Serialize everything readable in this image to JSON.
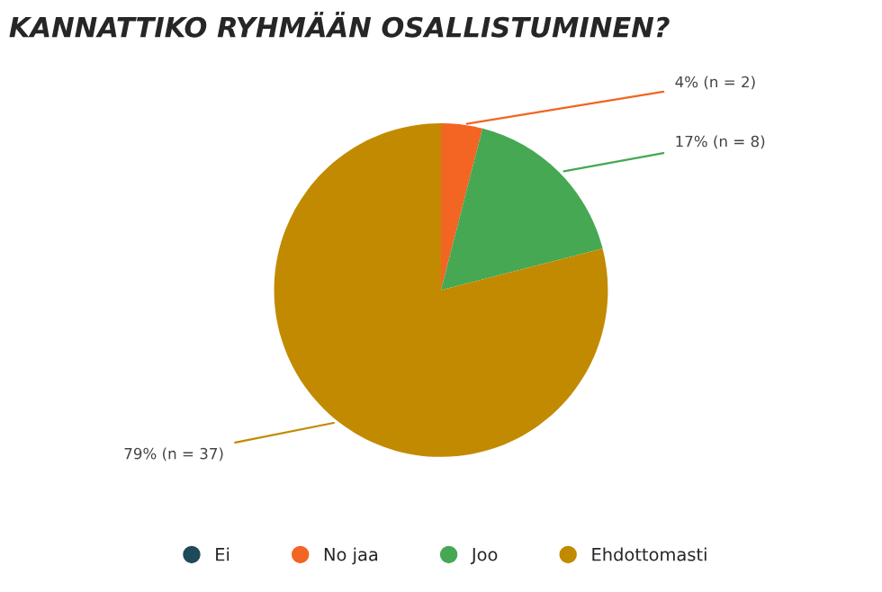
{
  "chart_data": {
    "type": "pie",
    "title": "KANNATTIKO RYHMÄÄN OSALLISTUMINEN?",
    "categories": [
      "Ei",
      "No jaa",
      "Joo",
      "Ehdottomasti"
    ],
    "values": [
      0,
      4,
      17,
      79
    ],
    "value_labels": [
      null,
      "4% (n = 2)",
      "17% (n = 8)",
      "79% (n = 37)"
    ],
    "colors": [
      "#1f4a5c",
      "#f26522",
      "#46a853",
      "#c28a00"
    ],
    "legend": "bottom"
  }
}
